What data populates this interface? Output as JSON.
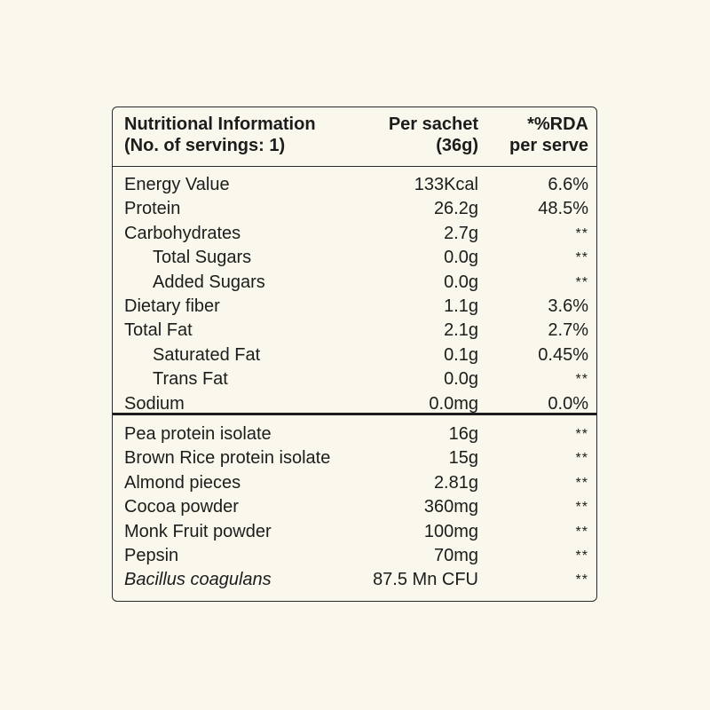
{
  "header": {
    "col1": [
      "Nutritional Information",
      "(No. of servings: 1)"
    ],
    "col2": [
      "Per sachet",
      "(36g)"
    ],
    "col3": [
      "*%RDA",
      "per serve"
    ]
  },
  "nutrients": [
    {
      "name": "Energy Value",
      "value": "133Kcal",
      "rda": "6.6%",
      "indent": false
    },
    {
      "name": "Protein",
      "value": "26.2g",
      "rda": "48.5%",
      "indent": false
    },
    {
      "name": "Carbohydrates",
      "value": "2.7g",
      "rda": "**",
      "indent": false
    },
    {
      "name": "Total Sugars",
      "value": "0.0g",
      "rda": "**",
      "indent": true
    },
    {
      "name": "Added Sugars",
      "value": "0.0g",
      "rda": "**",
      "indent": true
    },
    {
      "name": "Dietary fiber",
      "value": "1.1g",
      "rda": "3.6%",
      "indent": false
    },
    {
      "name": "Total Fat",
      "value": "2.1g",
      "rda": "2.7%",
      "indent": false
    },
    {
      "name": "Saturated Fat",
      "value": "0.1g",
      "rda": "0.45%",
      "indent": true
    },
    {
      "name": "Trans Fat",
      "value": "0.0g",
      "rda": "**",
      "indent": true
    },
    {
      "name": "Sodium",
      "value": "0.0mg",
      "rda": "0.0%",
      "indent": false
    }
  ],
  "ingredients": [
    {
      "name": "Pea protein isolate",
      "value": "16g",
      "rda": "**",
      "italic": false
    },
    {
      "name": "Brown Rice protein isolate",
      "value": "15g",
      "rda": "**",
      "italic": false
    },
    {
      "name": "Almond pieces",
      "value": "2.81g",
      "rda": "**",
      "italic": false
    },
    {
      "name": "Cocoa powder",
      "value": "360mg",
      "rda": "**",
      "italic": false
    },
    {
      "name": "Monk Fruit powder",
      "value": "100mg",
      "rda": "**",
      "italic": false
    },
    {
      "name": "Pepsin",
      "value": "70mg",
      "rda": "**",
      "italic": false
    },
    {
      "name": "Bacillus coagulans",
      "value": "87.5 Mn CFU",
      "rda": "**",
      "italic": true
    }
  ]
}
